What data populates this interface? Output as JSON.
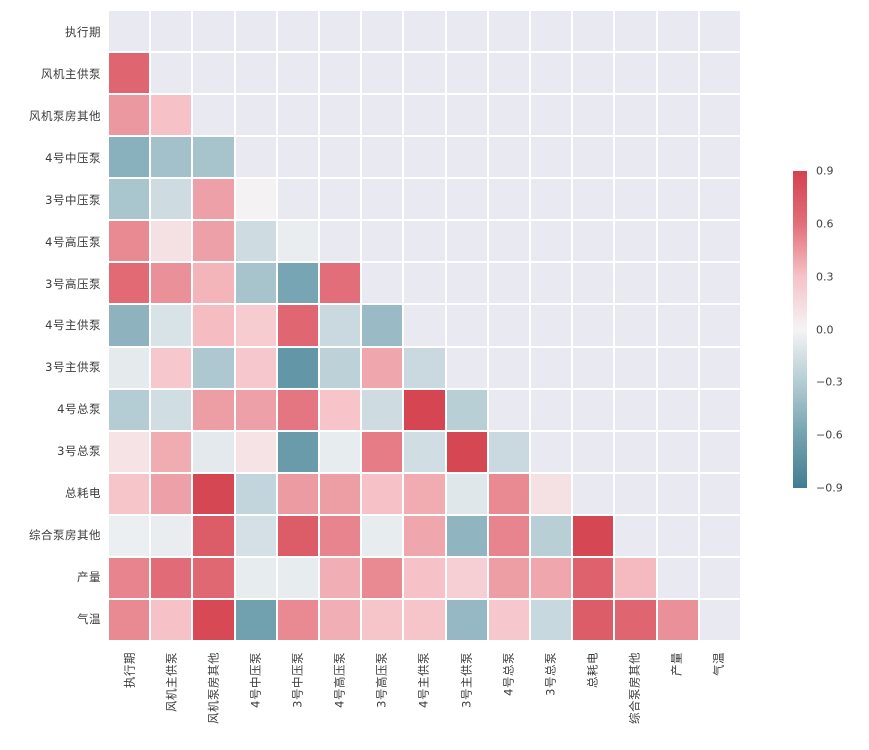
{
  "figure": {
    "background": "#ffffff",
    "masked_cell_color": "#e9e9f2",
    "grid_line_color": "#ffffff",
    "label_color": "#3b3b3b"
  },
  "chart_data": {
    "type": "heatmap",
    "subtype": "correlation-matrix-lower-triangle",
    "mask": "upper triangle including diagonal",
    "variables": [
      "执行期",
      "风机主供泵",
      "风机泵房其他",
      "4号中压泵",
      "3号中压泵",
      "4号高压泵",
      "3号高压泵",
      "4号主供泵",
      "3号主供泵",
      "4号总泵",
      "3号总泵",
      "总耗电",
      "综合泵房其他",
      "产量",
      "气温"
    ],
    "x_tick_labels": [
      "执行期",
      "风机主供泵",
      "风机泵房其他",
      "4号中压泵",
      "3号中压泵",
      "4号高压泵",
      "3号高压泵",
      "4号主供泵",
      "3号主供泵",
      "4号总泵",
      "3号总泵",
      "总耗电",
      "综合泵房其他",
      "产量",
      "气温"
    ],
    "y_tick_labels": [
      "执行期",
      "风机主供泵",
      "风机泵房其他",
      "4号中压泵",
      "3号中压泵",
      "4号高压泵",
      "3号高压泵",
      "4号主供泵",
      "3号主供泵",
      "4号总泵",
      "3号总泵",
      "总耗电",
      "综合泵房其他",
      "产量",
      "气温"
    ],
    "matrix": [
      [
        null,
        null,
        null,
        null,
        null,
        null,
        null,
        null,
        null,
        null,
        null,
        null,
        null,
        null,
        null
      ],
      [
        0.66,
        null,
        null,
        null,
        null,
        null,
        null,
        null,
        null,
        null,
        null,
        null,
        null,
        null,
        null
      ],
      [
        0.45,
        0.3,
        null,
        null,
        null,
        null,
        null,
        null,
        null,
        null,
        null,
        null,
        null,
        null,
        null
      ],
      [
        -0.5,
        -0.38,
        -0.36,
        null,
        null,
        null,
        null,
        null,
        null,
        null,
        null,
        null,
        null,
        null,
        null
      ],
      [
        -0.35,
        -0.18,
        0.42,
        0.01,
        null,
        null,
        null,
        null,
        null,
        null,
        null,
        null,
        null,
        null,
        null
      ],
      [
        0.5,
        0.12,
        0.42,
        -0.18,
        -0.05,
        null,
        null,
        null,
        null,
        null,
        null,
        null,
        null,
        null,
        null
      ],
      [
        0.63,
        0.48,
        0.35,
        -0.36,
        -0.58,
        0.6,
        null,
        null,
        null,
        null,
        null,
        null,
        null,
        null,
        null
      ],
      [
        -0.48,
        -0.13,
        0.32,
        0.24,
        0.65,
        -0.2,
        -0.42,
        null,
        null,
        null,
        null,
        null,
        null,
        null,
        null
      ],
      [
        -0.07,
        0.27,
        -0.33,
        0.27,
        -0.7,
        -0.26,
        0.4,
        -0.2,
        null,
        null,
        null,
        null,
        null,
        null,
        null
      ],
      [
        -0.3,
        -0.17,
        0.43,
        0.42,
        0.57,
        0.29,
        -0.18,
        0.87,
        -0.28,
        null,
        null,
        null,
        null,
        null,
        null
      ],
      [
        0.1,
        0.38,
        -0.08,
        0.1,
        -0.66,
        -0.06,
        0.55,
        -0.17,
        0.86,
        -0.2,
        null,
        null,
        null,
        null,
        null
      ],
      [
        0.28,
        0.42,
        0.86,
        -0.23,
        0.44,
        0.43,
        0.3,
        0.38,
        -0.1,
        0.5,
        0.12,
        null,
        null,
        null,
        null
      ],
      [
        -0.04,
        -0.05,
        0.72,
        -0.15,
        0.72,
        0.52,
        -0.06,
        0.4,
        -0.47,
        0.52,
        -0.28,
        0.86,
        null,
        null,
        null
      ],
      [
        0.52,
        0.62,
        0.64,
        -0.06,
        -0.06,
        0.37,
        0.5,
        0.3,
        0.22,
        0.43,
        0.4,
        0.68,
        0.33,
        null,
        null
      ],
      [
        0.5,
        0.3,
        0.85,
        -0.62,
        0.5,
        0.37,
        0.28,
        0.28,
        -0.44,
        0.27,
        -0.21,
        0.72,
        0.66,
        0.48,
        null
      ]
    ],
    "vmin": -0.9,
    "vmax": 0.9,
    "colormap_stops": [
      [
        -0.9,
        "#417d92"
      ],
      [
        -0.6,
        "#74a2b1"
      ],
      [
        -0.3,
        "#b4ccd4"
      ],
      [
        0.0,
        "#f4f4f5"
      ],
      [
        0.3,
        "#f6c2c7"
      ],
      [
        0.6,
        "#e26e79"
      ],
      [
        0.9,
        "#d4414e"
      ]
    ],
    "colorbar": {
      "tick_labels": [
        "0.9",
        "0.6",
        "0.3",
        "0.0",
        "−0.3",
        "−0.6",
        "−0.9"
      ],
      "tick_values": [
        0.9,
        0.6,
        0.3,
        0.0,
        -0.3,
        -0.6,
        -0.9
      ],
      "position": "right"
    },
    "legend": null,
    "title": ""
  }
}
